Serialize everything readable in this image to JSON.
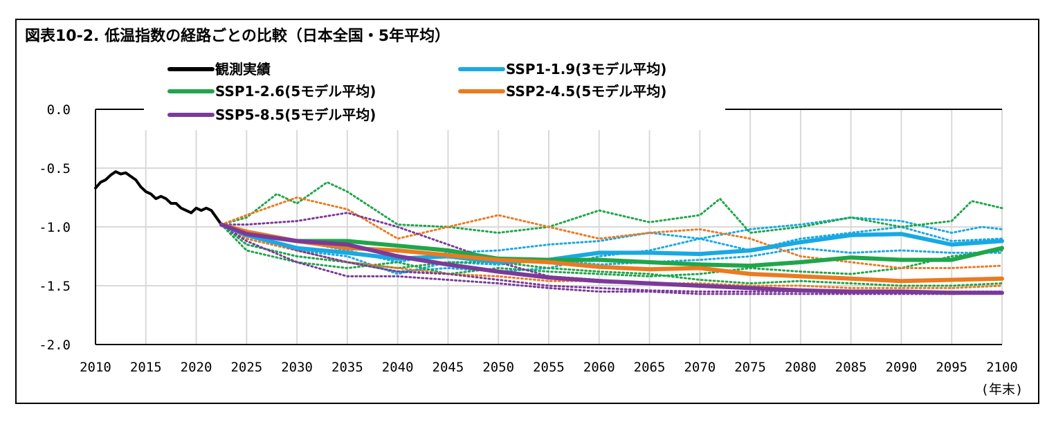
{
  "chart_data": {
    "type": "line",
    "title": "図表10-2. 低温指数の経路ごとの比較（日本全国・5年平均）",
    "xlabel": "(年末)",
    "ylabel": "",
    "xlim": [
      2010,
      2100
    ],
    "ylim": [
      -2.0,
      0.0
    ],
    "x_ticks": [
      "2010",
      "2015",
      "2020",
      "2025",
      "2030",
      "2035",
      "2040",
      "2045",
      "2050",
      "2055",
      "2060",
      "2065",
      "2070",
      "2075",
      "2080",
      "2085",
      "2090",
      "2095",
      "2100"
    ],
    "y_ticks": [
      "0.0",
      "-0.5",
      "-1.0",
      "-1.5",
      "-2.0"
    ],
    "grid": "vertical and horizontal",
    "legend_position": "top",
    "colors": {
      "observed": "#000000",
      "ssp119": "#19a9e2",
      "ssp126": "#1fa64a",
      "ssp245": "#eb7a20",
      "ssp585": "#7b3a9a"
    },
    "series": [
      {
        "name": "観測実績",
        "key": "observed",
        "x": [
          2010,
          2010.5,
          2011,
          2011.5,
          2012,
          2012.5,
          2013,
          2013.5,
          2014,
          2014.5,
          2015,
          2015.5,
          2016,
          2016.5,
          2017,
          2017.5,
          2018,
          2018.5,
          2019,
          2019.5,
          2020,
          2020.5,
          2021,
          2021.5,
          2022,
          2022.5
        ],
        "y": [
          -0.67,
          -0.62,
          -0.6,
          -0.56,
          -0.53,
          -0.55,
          -0.54,
          -0.57,
          -0.6,
          -0.66,
          -0.7,
          -0.72,
          -0.76,
          -0.74,
          -0.76,
          -0.8,
          -0.8,
          -0.84,
          -0.86,
          -0.88,
          -0.84,
          -0.86,
          -0.84,
          -0.86,
          -0.92,
          -0.98
        ]
      },
      {
        "name": "SSP1-1.9(3モデル平均)",
        "key": "ssp119",
        "x": [
          2022.5,
          2025,
          2030,
          2035,
          2040,
          2045,
          2050,
          2055,
          2060,
          2065,
          2070,
          2075,
          2080,
          2085,
          2090,
          2095,
          2100
        ],
        "y": [
          -0.98,
          -1.07,
          -1.18,
          -1.22,
          -1.27,
          -1.25,
          -1.3,
          -1.28,
          -1.22,
          -1.22,
          -1.23,
          -1.2,
          -1.13,
          -1.07,
          -1.06,
          -1.15,
          -1.12
        ]
      },
      {
        "name": "SSP1-2.6(5モデル平均)",
        "key": "ssp126",
        "x": [
          2022.5,
          2025,
          2030,
          2035,
          2040,
          2045,
          2050,
          2055,
          2060,
          2065,
          2070,
          2075,
          2080,
          2085,
          2090,
          2095,
          2100
        ],
        "y": [
          -0.98,
          -1.05,
          -1.12,
          -1.12,
          -1.16,
          -1.2,
          -1.27,
          -1.28,
          -1.28,
          -1.3,
          -1.32,
          -1.33,
          -1.3,
          -1.26,
          -1.28,
          -1.28,
          -1.18
        ]
      },
      {
        "name": "SSP2-4.5(5モデル平均)",
        "key": "ssp245",
        "x": [
          2022.5,
          2025,
          2030,
          2035,
          2040,
          2045,
          2050,
          2055,
          2060,
          2065,
          2070,
          2075,
          2080,
          2085,
          2090,
          2095,
          2100
        ],
        "y": [
          -0.98,
          -1.04,
          -1.12,
          -1.18,
          -1.2,
          -1.24,
          -1.28,
          -1.3,
          -1.34,
          -1.36,
          -1.35,
          -1.4,
          -1.42,
          -1.44,
          -1.46,
          -1.45,
          -1.44
        ]
      },
      {
        "name": "SSP5-8.5(5モデル平均)",
        "key": "ssp585",
        "x": [
          2022.5,
          2025,
          2030,
          2035,
          2040,
          2045,
          2050,
          2055,
          2060,
          2065,
          2070,
          2075,
          2080,
          2085,
          2090,
          2095,
          2100
        ],
        "y": [
          -0.98,
          -1.06,
          -1.12,
          -1.15,
          -1.25,
          -1.32,
          -1.38,
          -1.43,
          -1.46,
          -1.48,
          -1.5,
          -1.52,
          -1.54,
          -1.55,
          -1.55,
          -1.56,
          -1.56
        ]
      }
    ],
    "model_series": [
      {
        "key": "ssp119",
        "x": [
          2022.5,
          2025,
          2030,
          2035,
          2040,
          2045,
          2050,
          2055,
          2060,
          2065,
          2070,
          2075,
          2080,
          2085,
          2090,
          2095,
          2098,
          2100
        ],
        "y": [
          -0.98,
          -1.05,
          -1.12,
          -1.2,
          -1.3,
          -1.22,
          -1.2,
          -1.15,
          -1.12,
          -1.05,
          -1.1,
          -1.02,
          -0.98,
          -0.92,
          -0.95,
          -1.05,
          -1.0,
          -1.02
        ]
      },
      {
        "key": "ssp119",
        "x": [
          2022.5,
          2025,
          2030,
          2035,
          2040,
          2045,
          2050,
          2055,
          2060,
          2065,
          2070,
          2075,
          2080,
          2085,
          2090,
          2095,
          2100
        ],
        "y": [
          -0.98,
          -1.15,
          -1.25,
          -1.3,
          -1.38,
          -1.35,
          -1.38,
          -1.35,
          -1.25,
          -1.2,
          -1.1,
          -1.2,
          -1.1,
          -1.05,
          -1.0,
          -1.12,
          -1.1
        ]
      },
      {
        "key": "ssp119",
        "x": [
          2022.5,
          2025,
          2030,
          2035,
          2040,
          2045,
          2050,
          2055,
          2060,
          2065,
          2070,
          2075,
          2080,
          2085,
          2090,
          2095,
          2100
        ],
        "y": [
          -0.98,
          -1.1,
          -1.2,
          -1.25,
          -1.4,
          -1.3,
          -1.32,
          -1.28,
          -1.32,
          -1.3,
          -1.28,
          -1.25,
          -1.18,
          -1.22,
          -1.2,
          -1.22,
          -1.22
        ]
      },
      {
        "key": "ssp126",
        "x": [
          2022.5,
          2025,
          2028,
          2030,
          2033,
          2035,
          2040,
          2045,
          2050,
          2055,
          2060,
          2062,
          2065,
          2070,
          2072,
          2075,
          2080,
          2085,
          2090,
          2095,
          2097,
          2100
        ],
        "y": [
          -0.98,
          -0.92,
          -0.72,
          -0.8,
          -0.62,
          -0.7,
          -0.98,
          -1.0,
          -1.05,
          -1.0,
          -0.86,
          -0.9,
          -0.96,
          -0.9,
          -0.76,
          -1.05,
          -1.0,
          -0.92,
          -1.0,
          -0.95,
          -0.78,
          -0.84
        ]
      },
      {
        "key": "ssp126",
        "x": [
          2022.5,
          2025,
          2030,
          2035,
          2040,
          2045,
          2050,
          2055,
          2060,
          2065,
          2070,
          2075,
          2080,
          2085,
          2090,
          2095,
          2100
        ],
        "y": [
          -0.98,
          -1.2,
          -1.3,
          -1.35,
          -1.3,
          -1.4,
          -1.35,
          -1.38,
          -1.4,
          -1.42,
          -1.4,
          -1.35,
          -1.38,
          -1.4,
          -1.35,
          -1.25,
          -1.2
        ]
      },
      {
        "key": "ssp126",
        "x": [
          2022.5,
          2025,
          2030,
          2035,
          2040,
          2045,
          2050,
          2055,
          2060,
          2065,
          2070,
          2075,
          2080,
          2085,
          2090,
          2095,
          2100
        ],
        "y": [
          -0.98,
          -1.15,
          -1.25,
          -1.3,
          -1.35,
          -1.3,
          -1.3,
          -1.35,
          -1.38,
          -1.4,
          -1.45,
          -1.48,
          -1.46,
          -1.48,
          -1.5,
          -1.5,
          -1.48
        ]
      },
      {
        "key": "ssp245",
        "x": [
          2022.5,
          2025,
          2030,
          2035,
          2040,
          2045,
          2050,
          2055,
          2060,
          2065,
          2070,
          2075,
          2080,
          2085,
          2090,
          2095,
          2100
        ],
        "y": [
          -0.98,
          -0.9,
          -0.75,
          -0.85,
          -1.1,
          -1.0,
          -0.9,
          -1.0,
          -1.1,
          -1.05,
          -1.02,
          -1.1,
          -1.25,
          -1.3,
          -1.35,
          -1.35,
          -1.33
        ]
      },
      {
        "key": "ssp245",
        "x": [
          2022.5,
          2025,
          2030,
          2035,
          2040,
          2045,
          2050,
          2055,
          2060,
          2065,
          2070,
          2075,
          2080,
          2085,
          2090,
          2095,
          2100
        ],
        "y": [
          -0.98,
          -1.1,
          -1.2,
          -1.3,
          -1.35,
          -1.4,
          -1.42,
          -1.46,
          -1.46,
          -1.48,
          -1.48,
          -1.5,
          -1.5,
          -1.52,
          -1.52,
          -1.52,
          -1.5
        ]
      },
      {
        "key": "ssp585",
        "x": [
          2022.5,
          2025,
          2030,
          2035,
          2040,
          2045,
          2050,
          2055,
          2060,
          2065,
          2070,
          2075,
          2080,
          2085,
          2090,
          2095,
          2100
        ],
        "y": [
          -0.98,
          -0.98,
          -0.95,
          -0.88,
          -1.0,
          -1.15,
          -1.3,
          -1.42,
          -1.45,
          -1.48,
          -1.5,
          -1.52,
          -1.54,
          -1.55,
          -1.55,
          -1.56,
          -1.56
        ]
      },
      {
        "key": "ssp585",
        "x": [
          2022.5,
          2025,
          2030,
          2035,
          2040,
          2045,
          2050,
          2055,
          2060,
          2065,
          2070,
          2075,
          2080,
          2085,
          2090,
          2095,
          2100
        ],
        "y": [
          -0.98,
          -1.12,
          -1.3,
          -1.42,
          -1.42,
          -1.45,
          -1.48,
          -1.52,
          -1.55,
          -1.55,
          -1.57,
          -1.57,
          -1.57,
          -1.57,
          -1.57,
          -1.57,
          -1.56
        ]
      },
      {
        "key": "ssp585",
        "x": [
          2022.5,
          2025,
          2030,
          2035,
          2040,
          2045,
          2050,
          2055,
          2060,
          2065,
          2070,
          2075,
          2080,
          2085,
          2090,
          2095,
          2100
        ],
        "y": [
          -0.98,
          -1.05,
          -1.2,
          -1.3,
          -1.38,
          -1.4,
          -1.45,
          -1.5,
          -1.52,
          -1.54,
          -1.55,
          -1.55,
          -1.55,
          -1.55,
          -1.55,
          -1.55,
          -1.55
        ]
      }
    ]
  }
}
